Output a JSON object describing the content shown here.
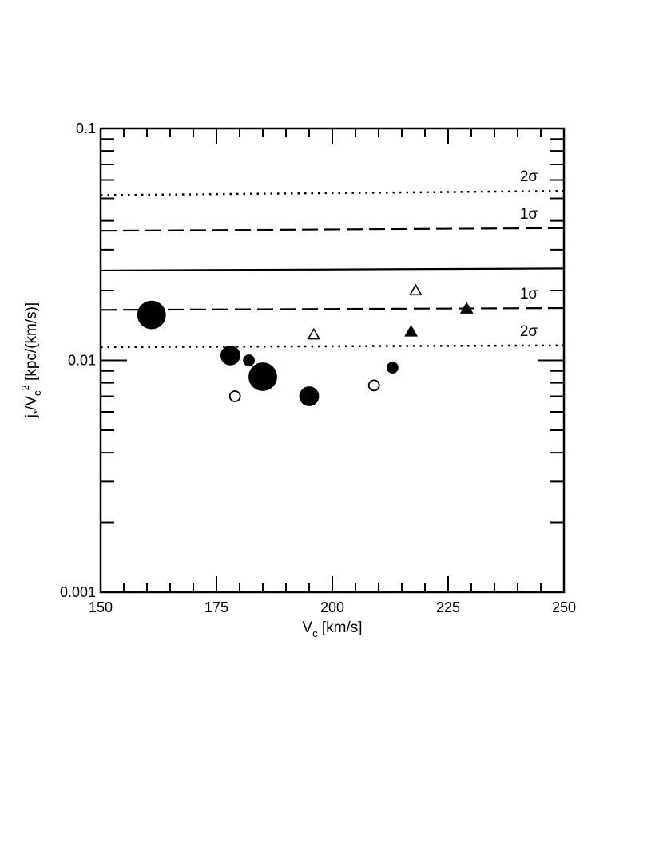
{
  "chart_data": {
    "type": "scatter",
    "title": "",
    "xlabel": {
      "main": "V",
      "sub": "c",
      "rest": " [km/s]"
    },
    "ylabel": {
      "p1": "j",
      "sub1": "*",
      "p2": "/V",
      "sub2": "c",
      "sup": "2",
      "rest": " [kpc/(km/s)]"
    },
    "xlim": [
      150,
      250
    ],
    "ylim": [
      0.001,
      0.1
    ],
    "yscale": "log",
    "x_ticks": [
      150,
      175,
      200,
      225,
      250
    ],
    "x_tick_labels": [
      "150",
      "175",
      "200",
      "225",
      "250"
    ],
    "y_ticks": [
      0.001,
      0.01,
      0.1
    ],
    "y_tick_labels": [
      "0.001",
      "0.01",
      "0.1"
    ],
    "grid": false,
    "reference_lines": [
      {
        "style": "solid",
        "y_start": 0.0244,
        "y_end": 0.0249,
        "label": ""
      },
      {
        "style": "dashed",
        "y_start": 0.0362,
        "y_end": 0.0372,
        "label": "1σ"
      },
      {
        "style": "dashed",
        "y_start": 0.0165,
        "y_end": 0.0168,
        "label": "1σ"
      },
      {
        "style": "dotted",
        "y_start": 0.0516,
        "y_end": 0.0538,
        "label": "2σ"
      },
      {
        "style": "dotted",
        "y_start": 0.0114,
        "y_end": 0.0116,
        "label": "2σ"
      }
    ],
    "points": [
      {
        "x": 161,
        "y": 0.0157,
        "marker": "filled-circle",
        "size": "xlarge"
      },
      {
        "x": 178,
        "y": 0.0105,
        "marker": "filled-circle",
        "size": "large"
      },
      {
        "x": 182,
        "y": 0.01,
        "marker": "filled-circle",
        "size": "small"
      },
      {
        "x": 185,
        "y": 0.0085,
        "marker": "filled-circle",
        "size": "xlarge"
      },
      {
        "x": 195,
        "y": 0.007,
        "marker": "filled-circle",
        "size": "large"
      },
      {
        "x": 213,
        "y": 0.0093,
        "marker": "filled-circle",
        "size": "small"
      },
      {
        "x": 179,
        "y": 0.007,
        "marker": "open-circle",
        "size": "small"
      },
      {
        "x": 209,
        "y": 0.0078,
        "marker": "open-circle",
        "size": "small"
      },
      {
        "x": 196,
        "y": 0.0129,
        "marker": "open-triangle",
        "size": "small"
      },
      {
        "x": 218,
        "y": 0.02,
        "marker": "open-triangle",
        "size": "small"
      },
      {
        "x": 217,
        "y": 0.0133,
        "marker": "filled-triangle",
        "size": "small"
      },
      {
        "x": 229,
        "y": 0.0167,
        "marker": "filled-triangle",
        "size": "small"
      }
    ]
  }
}
